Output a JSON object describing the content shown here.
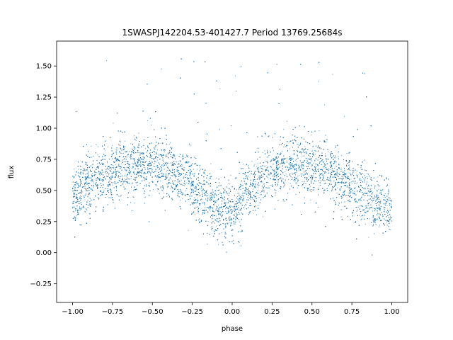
{
  "chart_data": {
    "type": "scatter",
    "title": "1SWASPJ142204.53-401427.7 Period 13769.25684s",
    "xlabel": "phase",
    "ylabel": "flux",
    "xlim": [
      -1.1,
      1.1
    ],
    "ylim": [
      -0.4,
      1.7
    ],
    "xticks": [
      -1.0,
      -0.75,
      -0.5,
      -0.25,
      0.0,
      0.25,
      0.5,
      0.75,
      1.0
    ],
    "xtick_labels": [
      "−1.00",
      "−0.75",
      "−0.50",
      "−0.25",
      "0.00",
      "0.25",
      "0.50",
      "0.75",
      "1.00"
    ],
    "yticks": [
      -0.25,
      0.0,
      0.25,
      0.5,
      0.75,
      1.0,
      1.25,
      1.5
    ],
    "ytick_labels": [
      "−0.25",
      "0.00",
      "0.25",
      "0.50",
      "0.75",
      "1.00",
      "1.25",
      "1.50"
    ],
    "grid": false,
    "marker_color": "#1f77b4",
    "series": [
      {
        "trend": {
          "phase": [
            -1.0,
            -0.9,
            -0.8,
            -0.7,
            -0.6,
            -0.5,
            -0.4,
            -0.3,
            -0.2,
            -0.1,
            0.0,
            0.1,
            0.2,
            0.3,
            0.4,
            0.5,
            0.6,
            0.7,
            0.8,
            0.9,
            1.0
          ],
          "flux": [
            0.43,
            0.55,
            0.63,
            0.69,
            0.71,
            0.7,
            0.67,
            0.6,
            0.48,
            0.36,
            0.33,
            0.48,
            0.62,
            0.7,
            0.71,
            0.7,
            0.66,
            0.58,
            0.47,
            0.39,
            0.35
          ]
        },
        "scatter_sigma": 0.12,
        "point_count": 19000
      }
    ]
  }
}
